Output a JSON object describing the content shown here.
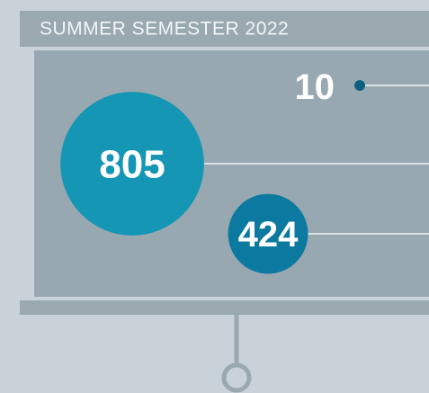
{
  "chart_data": {
    "type": "bubble",
    "title": "SUMMER SEMESTER 2022",
    "values": [
      805,
      424,
      10
    ],
    "colors": [
      "#1596b5",
      "#0c7aa0",
      "#0d5f80"
    ]
  }
}
